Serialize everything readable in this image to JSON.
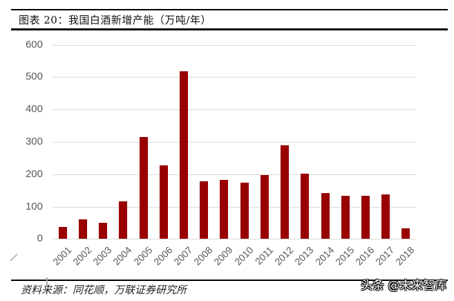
{
  "header": {
    "title": "图表 20：我国白酒新增产能（万吨/年）"
  },
  "footer": {
    "source": "资料来源：同花顺，万联证券研究所",
    "watermark": "头条 @未来智库"
  },
  "colors": {
    "bar": "#990000",
    "grid": "#d9d9d9",
    "axis_text": "#595959"
  },
  "chart_data": {
    "type": "bar",
    "title": "我国白酒新增产能（万吨/年）",
    "xlabel": "",
    "ylabel": "",
    "ylim": [
      0,
      600
    ],
    "yticks": [
      "0",
      "100",
      "200",
      "300",
      "400",
      "500",
      "600"
    ],
    "grid": true,
    "legend": null,
    "categories": [
      "2001",
      "2002",
      "2003",
      "2004",
      "2005",
      "2006",
      "2007",
      "2008",
      "2009",
      "2010",
      "2011",
      "2012",
      "2013",
      "2014",
      "2015",
      "2016",
      "2017",
      "2018"
    ],
    "series": [
      {
        "name": "新增产能",
        "values": [
          38,
          61,
          50,
          117,
          316,
          228,
          519,
          179,
          183,
          174,
          198,
          290,
          202,
          142,
          134,
          134,
          138,
          33
        ]
      }
    ]
  }
}
